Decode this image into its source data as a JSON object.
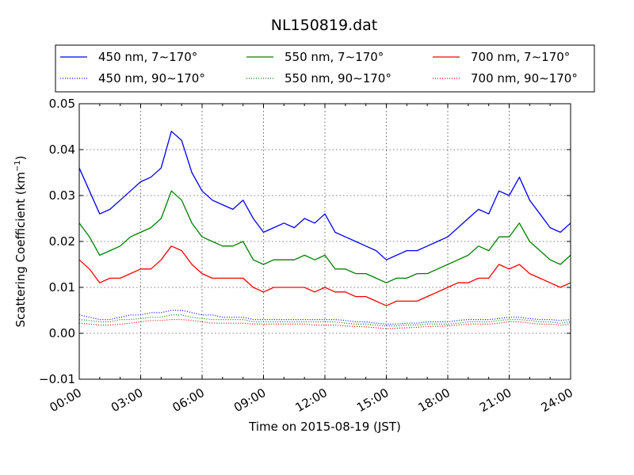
{
  "chart_data": {
    "type": "line",
    "title": "NL150819.dat",
    "xlabel": "Time on 2015-08-19 (JST)",
    "ylabel": "Scattering Coefficient (km",
    "ylabel_sup": "−1",
    "ylabel_suffix": ")",
    "xlim": [
      0,
      24
    ],
    "ylim": [
      -0.01,
      0.05
    ],
    "x_ticks": [
      0,
      3,
      6,
      9,
      12,
      15,
      18,
      21,
      24
    ],
    "x_tick_labels": [
      "00:00",
      "03:00",
      "06:00",
      "09:00",
      "12:00",
      "15:00",
      "18:00",
      "21:00",
      "24:00"
    ],
    "y_ticks": [
      -0.01,
      0.0,
      0.01,
      0.02,
      0.03,
      0.04,
      0.05
    ],
    "y_tick_labels": [
      "−0.01",
      "0.00",
      "0.01",
      "0.02",
      "0.03",
      "0.04",
      "0.05"
    ],
    "grid": true,
    "legend_position": "top",
    "x": [
      0,
      0.5,
      1,
      1.5,
      2,
      2.5,
      3,
      3.5,
      4,
      4.5,
      5,
      5.5,
      6,
      6.5,
      7,
      7.5,
      8,
      8.5,
      9,
      9.5,
      10,
      10.5,
      11,
      11.5,
      12,
      12.5,
      13,
      13.5,
      14,
      14.5,
      15,
      15.5,
      16,
      16.5,
      17,
      17.5,
      18,
      18.5,
      19,
      19.5,
      20,
      20.5,
      21,
      21.5,
      22,
      22.5,
      23,
      23.5,
      24
    ],
    "series": [
      {
        "name": "450 nm, 7∼170°",
        "color": "#0000ff",
        "style": "solid",
        "values": [
          0.036,
          0.031,
          0.026,
          0.027,
          0.029,
          0.031,
          0.033,
          0.034,
          0.036,
          0.044,
          0.042,
          0.035,
          0.031,
          0.029,
          0.028,
          0.027,
          0.029,
          0.025,
          0.022,
          0.023,
          0.024,
          0.023,
          0.025,
          0.024,
          0.026,
          0.022,
          0.021,
          0.02,
          0.019,
          0.018,
          0.016,
          0.017,
          0.018,
          0.018,
          0.019,
          0.02,
          0.021,
          0.023,
          0.025,
          0.027,
          0.026,
          0.031,
          0.03,
          0.034,
          0.029,
          0.026,
          0.023,
          0.022,
          0.024
        ]
      },
      {
        "name": "550 nm, 7∼170°",
        "color": "#008000",
        "style": "solid",
        "values": [
          0.024,
          0.021,
          0.017,
          0.018,
          0.019,
          0.021,
          0.022,
          0.023,
          0.025,
          0.031,
          0.029,
          0.024,
          0.021,
          0.02,
          0.019,
          0.019,
          0.02,
          0.016,
          0.015,
          0.016,
          0.016,
          0.016,
          0.017,
          0.016,
          0.017,
          0.014,
          0.014,
          0.013,
          0.013,
          0.012,
          0.011,
          0.012,
          0.012,
          0.013,
          0.013,
          0.014,
          0.015,
          0.016,
          0.017,
          0.019,
          0.018,
          0.021,
          0.021,
          0.024,
          0.02,
          0.018,
          0.016,
          0.015,
          0.017
        ]
      },
      {
        "name": "700 nm, 7∼170°",
        "color": "#ff0000",
        "style": "solid",
        "values": [
          0.016,
          0.014,
          0.011,
          0.012,
          0.012,
          0.013,
          0.014,
          0.014,
          0.016,
          0.019,
          0.018,
          0.015,
          0.013,
          0.012,
          0.012,
          0.012,
          0.012,
          0.01,
          0.009,
          0.01,
          0.01,
          0.01,
          0.01,
          0.009,
          0.01,
          0.009,
          0.009,
          0.008,
          0.008,
          0.007,
          0.006,
          0.007,
          0.007,
          0.007,
          0.008,
          0.009,
          0.01,
          0.011,
          0.011,
          0.012,
          0.012,
          0.015,
          0.014,
          0.015,
          0.013,
          0.012,
          0.011,
          0.01,
          0.011
        ]
      },
      {
        "name": "450 nm, 90∼170°",
        "color": "#0000ff",
        "style": "dotted",
        "values": [
          0.004,
          0.0035,
          0.003,
          0.003,
          0.0035,
          0.004,
          0.004,
          0.0045,
          0.0045,
          0.005,
          0.005,
          0.0045,
          0.004,
          0.004,
          0.0035,
          0.0035,
          0.0035,
          0.003,
          0.003,
          0.003,
          0.003,
          0.003,
          0.003,
          0.003,
          0.003,
          0.003,
          0.0028,
          0.0025,
          0.0025,
          0.0022,
          0.002,
          0.002,
          0.0022,
          0.0022,
          0.0025,
          0.0025,
          0.0025,
          0.0028,
          0.003,
          0.003,
          0.003,
          0.0032,
          0.0035,
          0.0035,
          0.0032,
          0.003,
          0.003,
          0.0028,
          0.003
        ]
      },
      {
        "name": "550 nm, 90∼170°",
        "color": "#008000",
        "style": "dotted",
        "values": [
          0.003,
          0.0028,
          0.0025,
          0.0025,
          0.003,
          0.003,
          0.0032,
          0.0035,
          0.0035,
          0.004,
          0.004,
          0.0035,
          0.0032,
          0.003,
          0.003,
          0.003,
          0.003,
          0.0025,
          0.0025,
          0.0025,
          0.0025,
          0.0025,
          0.0025,
          0.0025,
          0.0025,
          0.0025,
          0.0022,
          0.002,
          0.002,
          0.0018,
          0.0016,
          0.0016,
          0.0018,
          0.0018,
          0.002,
          0.002,
          0.002,
          0.0022,
          0.0025,
          0.0025,
          0.0025,
          0.0028,
          0.003,
          0.003,
          0.0028,
          0.0025,
          0.0025,
          0.0022,
          0.0025
        ]
      },
      {
        "name": "700 nm, 90∼170°",
        "color": "#ff0000",
        "style": "dotted",
        "values": [
          0.0022,
          0.002,
          0.0018,
          0.0018,
          0.002,
          0.0022,
          0.0025,
          0.0028,
          0.0028,
          0.003,
          0.003,
          0.0028,
          0.0025,
          0.0022,
          0.0022,
          0.0022,
          0.0022,
          0.002,
          0.002,
          0.002,
          0.002,
          0.002,
          0.002,
          0.0018,
          0.0018,
          0.0018,
          0.0016,
          0.0015,
          0.0014,
          0.0012,
          0.001,
          0.0011,
          0.0012,
          0.0013,
          0.0015,
          0.0015,
          0.0016,
          0.0018,
          0.002,
          0.002,
          0.002,
          0.0022,
          0.0025,
          0.0025,
          0.0022,
          0.002,
          0.002,
          0.0018,
          0.002
        ]
      }
    ],
    "legend_order": [
      0,
      1,
      2,
      3,
      4,
      5
    ]
  }
}
